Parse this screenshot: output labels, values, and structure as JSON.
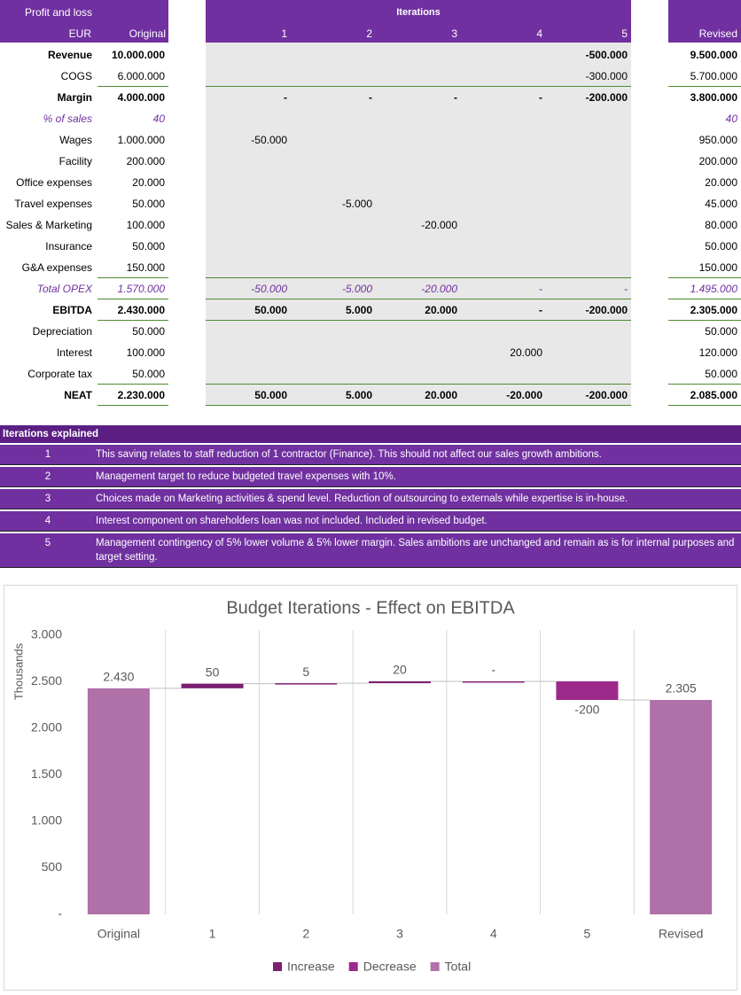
{
  "table": {
    "header": {
      "title": "Profit and loss",
      "iterations_title": "Iterations",
      "currency": "EUR",
      "original": "Original",
      "iterations": [
        "1",
        "2",
        "3",
        "4",
        "5"
      ],
      "revised": "Revised"
    },
    "rows": [
      {
        "label": "Revenue",
        "original": "10.000.000",
        "iterations": [
          null,
          null,
          null,
          null,
          "-500.000"
        ],
        "revised": "9.500.000"
      },
      {
        "label": "COGS",
        "original": "6.000.000",
        "iterations": [
          null,
          null,
          null,
          null,
          "-300.000"
        ],
        "revised": "5.700.000"
      },
      {
        "label": "Margin",
        "original": "4.000.000",
        "iterations": [
          "-",
          "-",
          "-",
          "-",
          "-200.000"
        ],
        "revised": "3.800.000"
      },
      {
        "label": "% of sales",
        "original": "40",
        "iterations": [
          null,
          null,
          null,
          null,
          null
        ],
        "revised": "40"
      },
      {
        "label": "Wages",
        "original": "1.000.000",
        "iterations": [
          "-50.000",
          null,
          null,
          null,
          null
        ],
        "revised": "950.000"
      },
      {
        "label": "Facility",
        "original": "200.000",
        "iterations": [
          null,
          null,
          null,
          null,
          null
        ],
        "revised": "200.000"
      },
      {
        "label": "Office expenses",
        "original": "20.000",
        "iterations": [
          null,
          null,
          null,
          null,
          null
        ],
        "revised": "20.000"
      },
      {
        "label": "Travel expenses",
        "original": "50.000",
        "iterations": [
          null,
          "-5.000",
          null,
          null,
          null
        ],
        "revised": "45.000"
      },
      {
        "label": "Sales & Marketing",
        "original": "100.000",
        "iterations": [
          null,
          null,
          "-20.000",
          null,
          null
        ],
        "revised": "80.000"
      },
      {
        "label": "Insurance",
        "original": "50.000",
        "iterations": [
          null,
          null,
          null,
          null,
          null
        ],
        "revised": "50.000"
      },
      {
        "label": "G&A expenses",
        "original": "150.000",
        "iterations": [
          null,
          null,
          null,
          null,
          null
        ],
        "revised": "150.000"
      },
      {
        "label": "Total OPEX",
        "original": "1.570.000",
        "iterations": [
          "-50.000",
          "-5.000",
          "-20.000",
          "-",
          "-"
        ],
        "revised": "1.495.000"
      },
      {
        "label": "EBITDA",
        "original": "2.430.000",
        "iterations": [
          "50.000",
          "5.000",
          "20.000",
          "-",
          "-200.000"
        ],
        "revised": "2.305.000"
      },
      {
        "label": "Depreciation",
        "original": "50.000",
        "iterations": [
          null,
          null,
          null,
          null,
          null
        ],
        "revised": "50.000"
      },
      {
        "label": "Interest",
        "original": "100.000",
        "iterations": [
          null,
          null,
          null,
          "20.000",
          null
        ],
        "revised": "120.000"
      },
      {
        "label": "Corporate tax",
        "original": "50.000",
        "iterations": [
          null,
          null,
          null,
          null,
          null
        ],
        "revised": "50.000"
      },
      {
        "label": "NEAT",
        "original": "2.230.000",
        "iterations": [
          "50.000",
          "5.000",
          "20.000",
          "-20.000",
          "-200.000"
        ],
        "revised": "2.085.000"
      }
    ]
  },
  "explanations": {
    "title": "Iterations explained",
    "items": [
      {
        "number": "1",
        "text": "This saving relates to staff reduction of 1 contractor (Finance). This should not affect our sales growth ambitions."
      },
      {
        "number": "2",
        "text": "Management target to reduce budgeted travel expenses with 10%."
      },
      {
        "number": "3",
        "text": "Choices made on Marketing activities & spend level. Reduction of outsourcing to externals while expertise is in-house."
      },
      {
        "number": "4",
        "text": "Interest component on shareholders loan was not included. Included in revised budget."
      },
      {
        "number": "5",
        "text": "Management contingency of 5% lower volume & 5% lower margin. Sales ambitions are unchanged and remain as is for internal purposes and target setting."
      }
    ]
  },
  "chart_data": {
    "type": "waterfall",
    "title": "Budget Iterations - Effect on EBITDA",
    "y_label": "Thousands",
    "categories": [
      "Original",
      "1",
      "2",
      "3",
      "4",
      "5",
      "Revised"
    ],
    "values": [
      2430,
      50,
      5,
      20,
      0,
      -200,
      2305
    ],
    "value_labels": [
      "2.430",
      "50",
      "5",
      "20",
      "-",
      "-200",
      "2.305"
    ],
    "series": [
      {
        "name": "Increase",
        "color": "#7b1f6f"
      },
      {
        "name": "Decrease",
        "color": "#9b2a8a"
      },
      {
        "name": "Total",
        "color": "#b070a8"
      }
    ],
    "ylim": [
      0,
      3000
    ],
    "yticks": [
      {
        "value": 0,
        "label": "-"
      },
      500,
      {
        "value": 1000,
        "label": "1.000"
      },
      {
        "value": 1500,
        "label": "1.500"
      },
      {
        "value": 2000,
        "label": "2.000"
      },
      {
        "value": 2500,
        "label": "2.500"
      },
      {
        "value": 3000,
        "label": "3.000"
      }
    ]
  }
}
